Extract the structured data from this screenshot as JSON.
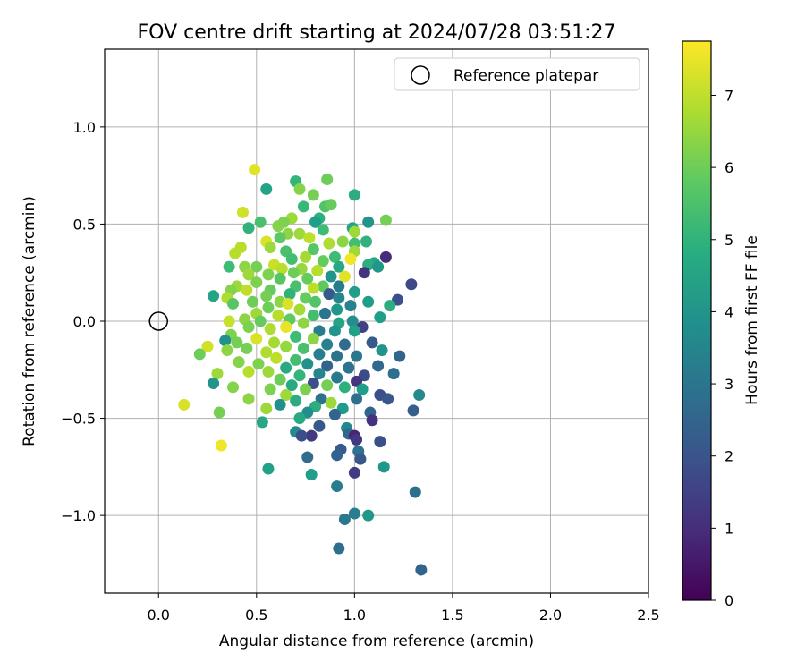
{
  "chart_data": {
    "type": "scatter",
    "title": "FOV centre drift starting at 2024/07/28 03:51:27",
    "xlabel": "Angular distance from reference (arcmin)",
    "ylabel": "Rotation from reference (arcmin)",
    "xlim": [
      -0.275,
      2.5
    ],
    "ylim": [
      -1.4,
      1.4
    ],
    "x_ticks": [
      0.0,
      0.5,
      1.0,
      1.5,
      2.0,
      2.5
    ],
    "x_tick_labels": [
      "0.0",
      "0.5",
      "1.0",
      "1.5",
      "2.0",
      "2.5"
    ],
    "y_ticks": [
      -1.0,
      -0.5,
      0.0,
      0.5,
      1.0
    ],
    "y_tick_labels": [
      "−1.0",
      "−0.5",
      "0.0",
      "0.5",
      "1.0"
    ],
    "grid": true,
    "legend": {
      "position": "top-right",
      "entries": [
        "Reference platepar"
      ]
    },
    "reference_point": {
      "x": 0.0,
      "y": 0.0
    },
    "colorbar": {
      "label": "Hours from first FF file",
      "range": [
        0,
        7.75
      ],
      "ticks": [
        0,
        1,
        2,
        3,
        4,
        5,
        6,
        7
      ],
      "tick_labels": [
        "0",
        "1",
        "2",
        "3",
        "4",
        "5",
        "6",
        "7"
      ],
      "colormap": "viridis"
    },
    "points": [
      [
        0.49,
        0.78,
        7.4
      ],
      [
        0.86,
        0.73,
        6.0
      ],
      [
        0.7,
        0.72,
        5.1
      ],
      [
        0.72,
        0.68,
        6.3
      ],
      [
        0.55,
        0.68,
        4.5
      ],
      [
        0.79,
        0.65,
        6.1
      ],
      [
        1.0,
        0.65,
        4.8
      ],
      [
        0.85,
        0.59,
        5.6
      ],
      [
        0.88,
        0.6,
        5.9
      ],
      [
        0.43,
        0.56,
        7.2
      ],
      [
        0.74,
        0.59,
        5.2
      ],
      [
        1.16,
        0.52,
        6.1
      ],
      [
        0.52,
        0.51,
        5.5
      ],
      [
        0.61,
        0.49,
        6.3
      ],
      [
        0.68,
        0.53,
        6.6
      ],
      [
        0.82,
        0.53,
        4.9
      ],
      [
        1.07,
        0.51,
        4.0
      ],
      [
        0.64,
        0.51,
        6.2
      ],
      [
        0.8,
        0.51,
        4.3
      ],
      [
        0.99,
        0.48,
        4.5
      ],
      [
        1.0,
        0.46,
        6.6
      ],
      [
        0.46,
        0.48,
        5.0
      ],
      [
        0.84,
        0.47,
        5.3
      ],
      [
        0.72,
        0.45,
        6.6
      ],
      [
        0.66,
        0.45,
        6.4
      ],
      [
        0.77,
        0.43,
        7.0
      ],
      [
        0.62,
        0.43,
        5.8
      ],
      [
        0.55,
        0.41,
        7.3
      ],
      [
        1.06,
        0.41,
        5.0
      ],
      [
        0.94,
        0.41,
        6.4
      ],
      [
        0.87,
        0.4,
        6.8
      ],
      [
        1.0,
        0.4,
        5.4
      ],
      [
        0.42,
        0.38,
        6.9
      ],
      [
        0.57,
        0.38,
        6.6
      ],
      [
        0.79,
        0.37,
        5.7
      ],
      [
        0.65,
        0.36,
        5.5
      ],
      [
        1.0,
        0.36,
        6.6
      ],
      [
        0.39,
        0.35,
        6.9
      ],
      [
        1.16,
        0.33,
        1.0
      ],
      [
        0.9,
        0.33,
        5.3
      ],
      [
        0.98,
        0.32,
        7.6
      ],
      [
        0.68,
        0.32,
        5.4
      ],
      [
        0.75,
        0.33,
        6.7
      ],
      [
        0.84,
        0.31,
        5.9
      ],
      [
        1.1,
        0.3,
        4.5
      ],
      [
        1.07,
        0.29,
        4.8
      ],
      [
        1.12,
        0.28,
        4.1
      ],
      [
        0.44,
        0.28,
        6.4
      ],
      [
        0.36,
        0.28,
        5.3
      ],
      [
        0.5,
        0.28,
        6.1
      ],
      [
        0.59,
        0.29,
        7.1
      ],
      [
        0.63,
        0.27,
        6.9
      ],
      [
        0.73,
        0.27,
        6.5
      ],
      [
        0.92,
        0.28,
        4.7
      ],
      [
        1.05,
        0.25,
        1.2
      ],
      [
        0.81,
        0.26,
        6.9
      ],
      [
        0.69,
        0.25,
        6.0
      ],
      [
        0.46,
        0.24,
        6.6
      ],
      [
        0.56,
        0.24,
        6.2
      ],
      [
        0.88,
        0.23,
        4.0
      ],
      [
        0.95,
        0.23,
        7.4
      ],
      [
        0.76,
        0.22,
        5.9
      ],
      [
        0.62,
        0.22,
        5.7
      ],
      [
        0.4,
        0.18,
        6.6
      ],
      [
        0.5,
        0.2,
        6.2
      ],
      [
        0.84,
        0.18,
        5.8
      ],
      [
        1.29,
        0.19,
        1.7
      ],
      [
        0.92,
        0.18,
        3.2
      ],
      [
        0.7,
        0.18,
        5.5
      ],
      [
        0.79,
        0.17,
        7.0
      ],
      [
        0.57,
        0.16,
        5.9
      ],
      [
        0.45,
        0.16,
        7.0
      ],
      [
        0.37,
        0.16,
        6.3
      ],
      [
        1.0,
        0.15,
        4.3
      ],
      [
        0.87,
        0.14,
        2.2
      ],
      [
        0.67,
        0.14,
        5.0
      ],
      [
        0.55,
        0.13,
        6.1
      ],
      [
        0.28,
        0.13,
        4.5
      ],
      [
        0.35,
        0.12,
        6.8
      ],
      [
        0.75,
        0.12,
        5.9
      ],
      [
        0.92,
        0.12,
        3.6
      ],
      [
        1.22,
        0.11,
        1.9
      ],
      [
        1.07,
        0.1,
        4.3
      ],
      [
        0.48,
        0.1,
        6.0
      ],
      [
        0.62,
        0.1,
        6.4
      ],
      [
        0.8,
        0.1,
        5.6
      ],
      [
        0.98,
        0.08,
        3.4
      ],
      [
        1.18,
        0.08,
        4.8
      ],
      [
        0.66,
        0.09,
        7.3
      ],
      [
        0.38,
        0.09,
        5.7
      ],
      [
        0.56,
        0.07,
        6.0
      ],
      [
        0.72,
        0.06,
        6.7
      ],
      [
        0.91,
        0.06,
        4.1
      ],
      [
        0.5,
        0.04,
        6.6
      ],
      [
        0.85,
        0.04,
        3.0
      ],
      [
        0.61,
        0.03,
        6.9
      ],
      [
        0.79,
        0.03,
        5.4
      ],
      [
        1.13,
        0.02,
        4.3
      ],
      [
        0.44,
        0.01,
        6.4
      ],
      [
        0.67,
        0.01,
        5.8
      ],
      [
        0.36,
        0.0,
        7.1
      ],
      [
        0.52,
        0.0,
        5.9
      ],
      [
        0.99,
        0.0,
        3.8
      ],
      [
        0.92,
        -0.01,
        4.5
      ],
      [
        0.74,
        -0.01,
        6.4
      ],
      [
        1.04,
        -0.03,
        1.5
      ],
      [
        0.65,
        -0.03,
        7.5
      ],
      [
        0.46,
        -0.03,
        6.2
      ],
      [
        0.57,
        -0.04,
        6.8
      ],
      [
        0.82,
        -0.05,
        3.2
      ],
      [
        1.0,
        -0.05,
        4.4
      ],
      [
        0.9,
        -0.05,
        4.0
      ],
      [
        0.37,
        -0.07,
        6.2
      ],
      [
        0.7,
        -0.08,
        5.3
      ],
      [
        0.5,
        -0.09,
        7.3
      ],
      [
        0.79,
        -0.09,
        6.4
      ],
      [
        0.59,
        -0.11,
        6.7
      ],
      [
        0.4,
        -0.11,
        6.1
      ],
      [
        0.34,
        -0.1,
        3.9
      ],
      [
        0.95,
        -0.12,
        2.7
      ],
      [
        0.86,
        -0.12,
        3.4
      ],
      [
        1.09,
        -0.11,
        2.2
      ],
      [
        0.25,
        -0.13,
        7.2
      ],
      [
        0.65,
        -0.13,
        6.5
      ],
      [
        0.74,
        -0.14,
        5.5
      ],
      [
        1.14,
        -0.15,
        4.0
      ],
      [
        0.45,
        -0.14,
        6.1
      ],
      [
        0.35,
        -0.15,
        6.4
      ],
      [
        0.55,
        -0.16,
        6.8
      ],
      [
        0.21,
        -0.17,
        6.0
      ],
      [
        0.82,
        -0.17,
        3.3
      ],
      [
        0.6,
        -0.19,
        7.0
      ],
      [
        0.91,
        -0.18,
        2.9
      ],
      [
        1.01,
        -0.18,
        3.0
      ],
      [
        0.7,
        -0.2,
        5.4
      ],
      [
        1.23,
        -0.18,
        2.5
      ],
      [
        0.41,
        -0.21,
        6.3
      ],
      [
        0.51,
        -0.22,
        6.2
      ],
      [
        0.76,
        -0.22,
        3.9
      ],
      [
        0.86,
        -0.23,
        2.4
      ],
      [
        0.65,
        -0.24,
        4.7
      ],
      [
        0.97,
        -0.24,
        2.9
      ],
      [
        1.12,
        -0.23,
        2.6
      ],
      [
        0.3,
        -0.27,
        6.6
      ],
      [
        0.46,
        -0.26,
        6.9
      ],
      [
        0.56,
        -0.26,
        6.6
      ],
      [
        0.82,
        -0.27,
        3.6
      ],
      [
        1.2,
        -0.27,
        2.8
      ],
      [
        0.72,
        -0.28,
        5.1
      ],
      [
        1.05,
        -0.28,
        1.8
      ],
      [
        0.91,
        -0.29,
        3.1
      ],
      [
        0.62,
        -0.3,
        6.0
      ],
      [
        1.01,
        -0.31,
        1.2
      ],
      [
        0.79,
        -0.32,
        1.9
      ],
      [
        0.28,
        -0.32,
        4.0
      ],
      [
        0.68,
        -0.33,
        4.7
      ],
      [
        0.86,
        -0.33,
        6.1
      ],
      [
        0.95,
        -0.34,
        4.9
      ],
      [
        0.38,
        -0.34,
        6.3
      ],
      [
        0.75,
        -0.35,
        6.2
      ],
      [
        1.04,
        -0.35,
        4.3
      ],
      [
        0.57,
        -0.35,
        6.2
      ],
      [
        1.13,
        -0.38,
        1.9
      ],
      [
        1.33,
        -0.38,
        3.7
      ],
      [
        0.65,
        -0.38,
        6.6
      ],
      [
        0.83,
        -0.4,
        2.9
      ],
      [
        0.46,
        -0.4,
        6.4
      ],
      [
        1.17,
        -0.4,
        2.1
      ],
      [
        0.7,
        -0.41,
        4.8
      ],
      [
        1.01,
        -0.4,
        2.8
      ],
      [
        0.88,
        -0.42,
        6.6
      ],
      [
        0.62,
        -0.43,
        3.9
      ],
      [
        0.13,
        -0.43,
        7.3
      ],
      [
        0.8,
        -0.44,
        4.8
      ],
      [
        0.94,
        -0.45,
        4.2
      ],
      [
        0.55,
        -0.45,
        6.6
      ],
      [
        1.3,
        -0.46,
        2.3
      ],
      [
        0.76,
        -0.47,
        3.8
      ],
      [
        0.31,
        -0.47,
        6.1
      ],
      [
        1.08,
        -0.47,
        2.5
      ],
      [
        0.9,
        -0.48,
        2.5
      ],
      [
        0.72,
        -0.5,
        4.7
      ],
      [
        1.09,
        -0.51,
        1.1
      ],
      [
        0.53,
        -0.52,
        4.6
      ],
      [
        0.82,
        -0.54,
        2.1
      ],
      [
        0.96,
        -0.55,
        3.6
      ],
      [
        0.7,
        -0.57,
        3.7
      ],
      [
        0.97,
        -0.58,
        2.6
      ],
      [
        0.78,
        -0.59,
        1.3
      ],
      [
        1.0,
        -0.59,
        0.8
      ],
      [
        0.73,
        -0.59,
        1.9
      ],
      [
        1.01,
        -0.61,
        1.3
      ],
      [
        1.13,
        -0.62,
        1.9
      ],
      [
        0.32,
        -0.64,
        7.6
      ],
      [
        0.93,
        -0.66,
        2.2
      ],
      [
        1.02,
        -0.67,
        2.9
      ],
      [
        0.91,
        -0.69,
        2.4
      ],
      [
        1.03,
        -0.71,
        2.1
      ],
      [
        0.76,
        -0.7,
        2.7
      ],
      [
        1.15,
        -0.75,
        4.1
      ],
      [
        0.56,
        -0.76,
        4.4
      ],
      [
        1.0,
        -0.78,
        1.4
      ],
      [
        0.78,
        -0.79,
        4.3
      ],
      [
        0.91,
        -0.85,
        3.2
      ],
      [
        1.31,
        -0.88,
        2.8
      ],
      [
        1.0,
        -0.99,
        3.3
      ],
      [
        1.07,
        -1.0,
        4.1
      ],
      [
        0.95,
        -1.02,
        3.1
      ],
      [
        0.92,
        -1.17,
        2.8
      ],
      [
        1.34,
        -1.28,
        2.5
      ]
    ]
  }
}
